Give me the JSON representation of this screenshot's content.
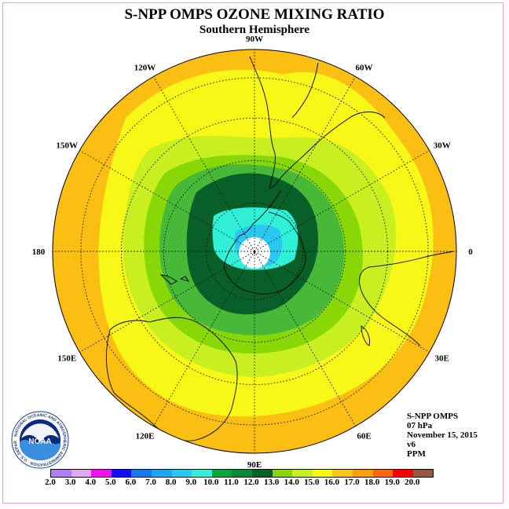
{
  "title": "S-NPP OMPS OZONE MIXING RATIO",
  "subtitle": "Southern Hemisphere",
  "longitude_labels": [
    "90W",
    "60W",
    "30W",
    "0",
    "30E",
    "60E",
    "90E",
    "120E",
    "150E",
    "180",
    "150W",
    "120W"
  ],
  "info": {
    "instrument": "S-NPP OMPS",
    "level": "07 hPa",
    "date": "November 15, 2015",
    "version": "v6",
    "units": "PPM"
  },
  "logo_text": "NOAA",
  "logo_ring_text": "NATIONAL OCEANIC AND ATMOSPHERIC ADMINISTRATION · U.S. DEPARTMENT OF COMMERCE",
  "colorbar": {
    "ticks": [
      "2.0",
      "3.0",
      "4.0",
      "5.0",
      "6.0",
      "7.0",
      "8.0",
      "9.0",
      "10.0",
      "11.0",
      "12.0",
      "13.0",
      "14.0",
      "15.0",
      "16.0",
      "17.0",
      "18.0",
      "19.0",
      "20.0"
    ],
    "colors": [
      "#b080f0",
      "#e0a8f0",
      "#f010f0",
      "#1010f0",
      "#1878f0",
      "#18a8f0",
      "#28c8f0",
      "#30f0d8",
      "#08a838",
      "#088838",
      "#086028",
      "#88d808",
      "#c8f020",
      "#f8f818",
      "#f8c818",
      "#f8a008",
      "#f86808",
      "#f80000",
      "#985840"
    ]
  },
  "colors": {
    "outer_band": "#fbbf13",
    "yellow": "#f8f818",
    "light_yellow_green": "#c8f020",
    "yellow_green": "#88d808",
    "green": "#48b838",
    "dark_green": "#086028",
    "cyan": "#30f0d8",
    "light_blue": "#28c8f0",
    "pole_hole": "#ffffff"
  }
}
